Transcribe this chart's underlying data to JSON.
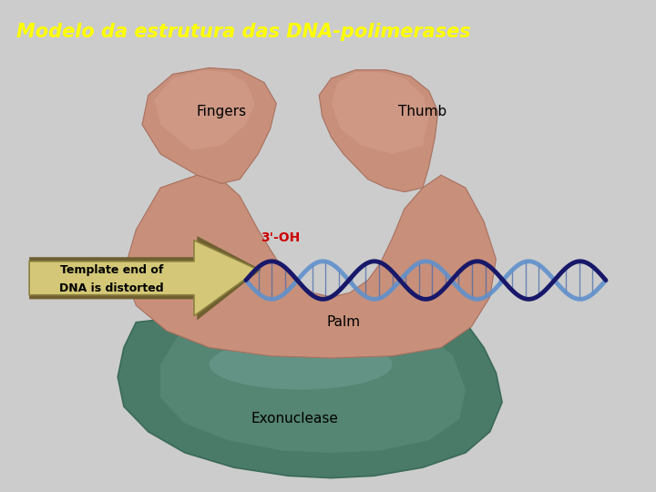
{
  "title": "Modelo da estrutura das DNA-polimerases",
  "title_color": "#FFFF00",
  "title_bg_color": "#3333BB",
  "title_fontsize": 15,
  "panel_bg": "#A8B4C4",
  "skin_color": "#C8907A",
  "skin_mid": "#BC8070",
  "skin_dark": "#A87060",
  "skin_light": "#D4A090",
  "palm_green": "#4A7A68",
  "palm_green_light": "#5A8A78",
  "palm_green_dark": "#3A6A58",
  "exonuclease_label": "Exonuclease",
  "palm_label": "Palm",
  "fingers_label": "Fingers",
  "thumb_label": "Thumb",
  "dna_label": "3'-OH",
  "arrow_label1": "Template end of",
  "arrow_label2": "DNA is distorted",
  "arrow_fill": "#D4C878",
  "arrow_edge": "#8A8040",
  "arrow_shadow": "#706030",
  "dna_dark_blue": "#18186A",
  "dna_mid_blue": "#2828AA",
  "dna_light_blue": "#6090CC"
}
